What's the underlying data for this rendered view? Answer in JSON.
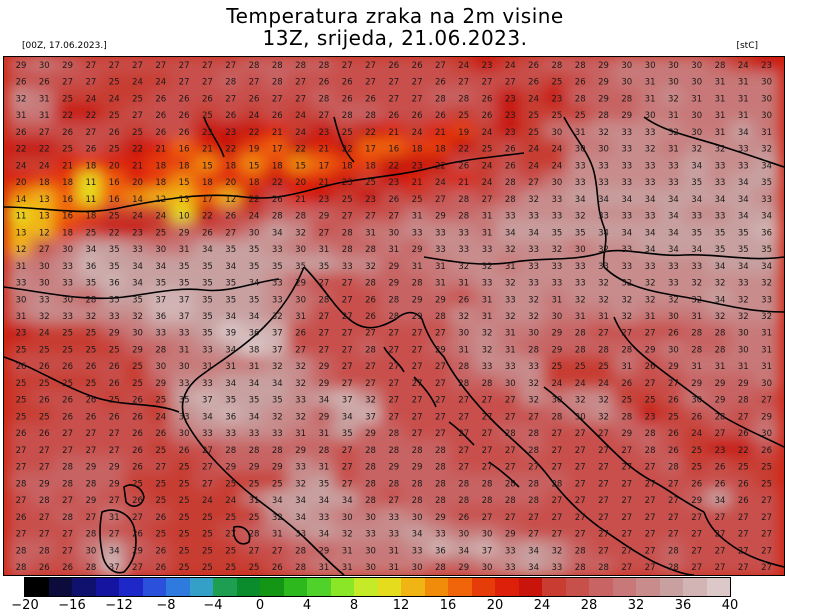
{
  "header": {
    "title_line1": "Temperatura zraka na 2m visine",
    "title_line2": "13Z, srijeda, 21.06.2023.",
    "run_label": "[00Z, 17.06.2023.]",
    "unit_label": "[stC]"
  },
  "legend": {
    "ticks": [
      "−20",
      "−16",
      "−12",
      "−8",
      "−4",
      "0",
      "4",
      "8",
      "12",
      "16",
      "20",
      "24",
      "28",
      "32",
      "36",
      "40"
    ],
    "colors": [
      "#000000",
      "#0b0b3c",
      "#10106e",
      "#1414a0",
      "#1e28c8",
      "#2a50dc",
      "#2f7adf",
      "#34a0c8",
      "#1e9e50",
      "#0a8c2c",
      "#149614",
      "#2db81e",
      "#50d22a",
      "#8ce628",
      "#c4ea28",
      "#e6dc1e",
      "#f0b414",
      "#f08c0a",
      "#f0640a",
      "#e63c0a",
      "#dc200a",
      "#c8140a",
      "#c83c32",
      "#c8504b",
      "#c86464",
      "#c87878",
      "#c88c8c",
      "#c8a0a0",
      "#d2b4b4",
      "#dcc8c8"
    ]
  },
  "map": {
    "grid_values": [
      "29 30 29 27 27 27 27 27 27 27 28 28 28 28 27 27 26 26 27 24 23 24 26 28 28 29 30 30 30 30 28 24 23",
      "26 26 27 27 25 24 24 27 27 28 27 28 27 26 26 27 27 27 26 27 27 27 26 25 26 29 30 31 30 30 31 31 30",
      "32 31 25 24 24 25 26 26 26 27 26 27 27 28 26 26 27 27 28 28 26 23 24 23 28 29 28 31 32 31 31 31 30",
      "31 31 22 22 25 27 26 26 25 26 24 26 24 27 28 28 26 26 26 25 26 23 25 25 25 28 29 30 31 30 31 31 30",
      "26 27 26 27 26 25 26 26 23 23 22 21 24 23 25 22 21 24 21 19 24 23 25 30 31 32 33 33 32 30 31 34 31",
      "22 22 25 26 25 22 21 16 21 22 19 17 22 21 22 17 16 18 18 22 25 26 24 24 30 30 33 32 31 32 32 33 32",
      "24 24 21 18 20 21 18 18 15 18 15 18 15 17 18 18 22 23 22 26 24 26 24 24 33 33 33 33 33 34 33 33 34",
      "20 18 18 11 16 20 18 15 18 20 18 22 20 21 23 25 23 21 24 21 24 28 27 30 33 33 33 33 33 35 33 34 35",
      "14 13 16 11 16 14 12 13 17 12 22 26 21 23 25 23 26 25 27 28 27 28 32 33 34 34 34 34 34 34 34 34 33",
      "11 13 16 18 25 24 24 10 22 26 24 28 28 29 27 27 27 31 29 28 31 33 33 33 32 33 33 33 34 33 33 34 34",
      "13 12 18 25 22 23 25 29 26 27 30 34 32 27 28 31 30 33 33 33 31 34 34 35 35 34 34 34 34 35 35 35 36",
      "12 27 30 34 35 33 30 31 34 35 35 33 30 31 28 28 31 29 33 33 33 32 33 32 30 32 33 34 34 34 35 35 35",
      "31 30 33 36 35 34 34 35 35 34 35 35 35 35 33 32 29 31 31 32 32 31 33 33 33 33 33 33 33 33 34 34 34",
      "33 30 33 35 36 34 35 35 35 35 34 33 29 27 27 28 29 28 31 31 33 32 33 33 33 32 32 32 33 32 32 33 32",
      "30 33 30 28 35 35 37 37 35 35 35 33 30 28 27 26 28 29 29 26 31 33 32 31 32 32 32 32 32 32 34 32 33",
      "31 32 33 32 33 32 36 37 35 34 34 32 31 27 27 26 28 29 28 32 31 32 32 30 31 31 32 31 30 31 32 32 32",
      "23 24 25 25 29 30 33 33 35 39 36 37 26 27 27 27 27 27 27 30 32 31 30 29 28 27 27 27 26 28 28 30 31",
      "25 25 25 25 25 29 28 31 33 34 38 37 27 27 27 28 27 27 29 31 32 31 28 29 28 28 28 29 30 28 28 30 31",
      "26 26 26 26 26 25 30 30 31 31 31 32 32 29 27 27 27 27 27 28 33 33 33 25 25 25 31 26 29 31 31 31 31",
      "25 25 25 25 26 25 29 33 33 34 34 34 32 29 27 27 27 27 27 28 28 30 32 24 24 24 26 27 27 29 29 29 30",
      "25 26 26 26 25 26 25 35 37 35 35 35 33 34 37 32 27 27 27 27 27 27 32 30 32 32 25 25 26 30 29 28 27",
      "25 25 26 26 26 26 24 33 34 36 34 32 32 29 34 37 27 27 27 27 27 27 27 28 30 32 28 23 25 26 28 27 29",
      "26 26 27 27 27 26 26 30 33 33 33 33 31 31 35 29 28 27 27 27 27 28 28 27 27 27 29 28 26 24 27 26 30",
      "27 27 27 27 27 26 25 26 27 28 28 28 29 28 27 28 28 28 28 27 27 27 28 27 27 27 27 28 26 25 23 22 26",
      "27 27 28 29 29 26 27 25 27 29 29 29 33 31 27 28 29 29 28 27 27 27 27 27 27 27 27 27 28 25 26 25 25",
      "28 29 28 28 29 25 25 25 27 25 25 25 32 35 27 28 28 28 28 28 28 28 28 28 27 27 27 27 27 26 26 26 25",
      "27 28 27 29 27 26 25 25 24 24 31 34 34 34 34 28 27 28 28 28 28 28 28 27 27 27 27 27 27 29 34 26 27",
      "26 27 28 27 31 27 26 25 25 25 25 32 34 33 30 30 33 30 29 26 27 27 27 27 27 27 27 27 27 27 27 27 27",
      "27 27 27 28 27 26 25 25 25 27 28 31 33 34 32 33 33 34 33 30 30 29 27 27 27 27 27 27 27 27 27 27 27",
      "28 28 27 30 34 29 26 25 25 25 27 27 28 29 31 30 31 33 36 34 37 33 34 32 28 27 27 27 28 27 27 27 27",
      "28 26 26 28 37 27 26 25 25 25 25 26 28 31 31 30 31 30 28 29 30 33 34 33 28 28 27 27 28 27 27 27 27"
    ]
  }
}
